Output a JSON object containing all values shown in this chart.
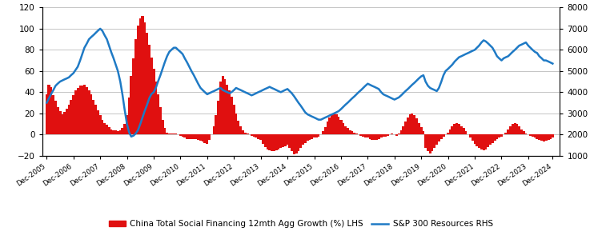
{
  "bar_color": "#e01010",
  "line_color": "#1f7ac5",
  "bar_label": "China Total Social Financing 12mth Agg Growth (%) LHS",
  "line_label": "S&P 300 Resources RHS",
  "left_ylim": [
    -20,
    120
  ],
  "right_ylim": [
    1000,
    8000
  ],
  "left_yticks": [
    -20,
    0,
    20,
    40,
    60,
    80,
    100,
    120
  ],
  "right_yticks": [
    1000,
    2000,
    3000,
    4000,
    5000,
    6000,
    7000,
    8000
  ],
  "bg_color": "#ffffff",
  "grid_color": "#bbbbbb",
  "tsf_data": {
    "x": [
      2005.92,
      2006.0,
      2006.08,
      2006.17,
      2006.25,
      2006.33,
      2006.42,
      2006.5,
      2006.58,
      2006.67,
      2006.75,
      2006.83,
      2006.92,
      2007.0,
      2007.08,
      2007.17,
      2007.25,
      2007.33,
      2007.42,
      2007.5,
      2007.58,
      2007.67,
      2007.75,
      2007.83,
      2007.92,
      2008.0,
      2008.08,
      2008.17,
      2008.25,
      2008.33,
      2008.42,
      2008.5,
      2008.58,
      2008.67,
      2008.75,
      2008.83,
      2008.92,
      2009.0,
      2009.08,
      2009.17,
      2009.25,
      2009.33,
      2009.42,
      2009.5,
      2009.58,
      2009.67,
      2009.75,
      2009.83,
      2009.92,
      2010.0,
      2010.08,
      2010.17,
      2010.25,
      2010.33,
      2010.42,
      2010.5,
      2010.58,
      2010.67,
      2010.75,
      2010.83,
      2010.92,
      2011.0,
      2011.08,
      2011.17,
      2011.25,
      2011.33,
      2011.42,
      2011.5,
      2011.58,
      2011.67,
      2011.75,
      2011.83,
      2011.92,
      2012.0,
      2012.08,
      2012.17,
      2012.25,
      2012.33,
      2012.42,
      2012.5,
      2012.58,
      2012.67,
      2012.75,
      2012.83,
      2012.92,
      2013.0,
      2013.08,
      2013.17,
      2013.25,
      2013.33,
      2013.42,
      2013.5,
      2013.58,
      2013.67,
      2013.75,
      2013.83,
      2013.92,
      2014.0,
      2014.08,
      2014.17,
      2014.25,
      2014.33,
      2014.42,
      2014.5,
      2014.58,
      2014.67,
      2014.75,
      2014.83,
      2014.92,
      2015.0,
      2015.08,
      2015.17,
      2015.25,
      2015.33,
      2015.42,
      2015.5,
      2015.58,
      2015.67,
      2015.75,
      2015.83,
      2015.92,
      2016.0,
      2016.08,
      2016.17,
      2016.25,
      2016.33,
      2016.42,
      2016.5,
      2016.58,
      2016.67,
      2016.75,
      2016.83,
      2016.92,
      2017.0,
      2017.08,
      2017.17,
      2017.25,
      2017.33,
      2017.42,
      2017.5,
      2017.58,
      2017.67,
      2017.75,
      2017.83,
      2017.92,
      2018.0,
      2018.08,
      2018.17,
      2018.25,
      2018.33,
      2018.42,
      2018.5,
      2018.58,
      2018.67,
      2018.75,
      2018.83,
      2018.92,
      2019.0,
      2019.08,
      2019.17,
      2019.25,
      2019.33,
      2019.42,
      2019.5,
      2019.58,
      2019.67,
      2019.75,
      2019.83,
      2019.92,
      2020.0,
      2020.08,
      2020.17,
      2020.25,
      2020.33,
      2020.42,
      2020.5,
      2020.58,
      2020.67,
      2020.75,
      2020.83,
      2020.92,
      2021.0,
      2021.08,
      2021.17,
      2021.25,
      2021.33,
      2021.42,
      2021.5,
      2021.58,
      2021.67,
      2021.75,
      2021.83,
      2021.92,
      2022.0,
      2022.08,
      2022.17,
      2022.25,
      2022.33,
      2022.42,
      2022.5,
      2022.58,
      2022.67,
      2022.75,
      2022.83,
      2022.92,
      2023.0,
      2023.08,
      2023.17,
      2023.25,
      2023.33,
      2023.42,
      2023.5,
      2023.58,
      2023.67,
      2023.75,
      2023.83,
      2023.92,
      2024.0,
      2024.08,
      2024.17,
      2024.25,
      2024.33,
      2024.42,
      2024.5,
      2024.58,
      2024.67,
      2024.75,
      2024.83
    ],
    "y": [
      38,
      47,
      45,
      37,
      32,
      26,
      22,
      19,
      21,
      24,
      28,
      33,
      37,
      42,
      44,
      46,
      46,
      47,
      45,
      42,
      38,
      33,
      28,
      23,
      18,
      14,
      11,
      9,
      7,
      5,
      4,
      4,
      3,
      4,
      6,
      10,
      18,
      35,
      55,
      72,
      90,
      103,
      110,
      112,
      106,
      96,
      85,
      73,
      62,
      50,
      38,
      26,
      14,
      6,
      2,
      1,
      1,
      1,
      1,
      0,
      -1,
      -2,
      -3,
      -4,
      -4,
      -4,
      -4,
      -4,
      -5,
      -6,
      -7,
      -8,
      -9,
      -5,
      0,
      8,
      18,
      32,
      50,
      55,
      52,
      47,
      42,
      36,
      28,
      20,
      13,
      8,
      4,
      2,
      1,
      0,
      -1,
      -2,
      -3,
      -4,
      -5,
      -9,
      -12,
      -14,
      -15,
      -16,
      -16,
      -15,
      -14,
      -13,
      -12,
      -11,
      -10,
      -13,
      -16,
      -19,
      -18,
      -16,
      -13,
      -10,
      -8,
      -6,
      -5,
      -4,
      -3,
      -3,
      -2,
      0,
      3,
      7,
      12,
      16,
      19,
      20,
      19,
      17,
      14,
      11,
      8,
      6,
      4,
      3,
      2,
      1,
      0,
      -1,
      -2,
      -3,
      -3,
      -4,
      -5,
      -5,
      -5,
      -4,
      -3,
      -2,
      -2,
      -1,
      0,
      1,
      0,
      -1,
      1,
      4,
      8,
      12,
      16,
      19,
      20,
      18,
      15,
      11,
      7,
      3,
      -13,
      -16,
      -18,
      -16,
      -13,
      -10,
      -7,
      -4,
      -2,
      0,
      2,
      5,
      8,
      10,
      11,
      10,
      8,
      6,
      3,
      0,
      -3,
      -6,
      -9,
      -11,
      -13,
      -14,
      -15,
      -14,
      -12,
      -10,
      -8,
      -6,
      -4,
      -3,
      -2,
      0,
      2,
      5,
      8,
      10,
      11,
      10,
      8,
      5,
      3,
      1,
      0,
      -1,
      -2,
      -3,
      -4,
      -5,
      -6,
      -7,
      -6,
      -5,
      -4,
      -3
    ]
  },
  "sp300_data": {
    "x": [
      2005.92,
      2006.0,
      2006.08,
      2006.17,
      2006.25,
      2006.33,
      2006.42,
      2006.5,
      2006.58,
      2006.67,
      2006.75,
      2006.83,
      2006.92,
      2007.0,
      2007.08,
      2007.17,
      2007.25,
      2007.33,
      2007.42,
      2007.5,
      2007.58,
      2007.67,
      2007.75,
      2007.83,
      2007.92,
      2008.0,
      2008.08,
      2008.17,
      2008.25,
      2008.33,
      2008.42,
      2008.5,
      2008.58,
      2008.67,
      2008.75,
      2008.83,
      2008.92,
      2009.0,
      2009.08,
      2009.17,
      2009.25,
      2009.33,
      2009.42,
      2009.5,
      2009.58,
      2009.67,
      2009.75,
      2009.83,
      2009.92,
      2010.0,
      2010.08,
      2010.17,
      2010.25,
      2010.33,
      2010.42,
      2010.5,
      2010.58,
      2010.67,
      2010.75,
      2010.83,
      2010.92,
      2011.0,
      2011.08,
      2011.17,
      2011.25,
      2011.33,
      2011.42,
      2011.5,
      2011.58,
      2011.67,
      2011.75,
      2011.83,
      2011.92,
      2012.0,
      2012.08,
      2012.17,
      2012.25,
      2012.33,
      2012.42,
      2012.5,
      2012.58,
      2012.67,
      2012.75,
      2012.83,
      2012.92,
      2013.0,
      2013.08,
      2013.17,
      2013.25,
      2013.33,
      2013.42,
      2013.5,
      2013.58,
      2013.67,
      2013.75,
      2013.83,
      2013.92,
      2014.0,
      2014.08,
      2014.17,
      2014.25,
      2014.33,
      2014.42,
      2014.5,
      2014.58,
      2014.67,
      2014.75,
      2014.83,
      2014.92,
      2015.0,
      2015.08,
      2015.17,
      2015.25,
      2015.33,
      2015.42,
      2015.5,
      2015.58,
      2015.67,
      2015.75,
      2015.83,
      2015.92,
      2016.0,
      2016.08,
      2016.17,
      2016.25,
      2016.33,
      2016.42,
      2016.5,
      2016.58,
      2016.67,
      2016.75,
      2016.83,
      2016.92,
      2017.0,
      2017.08,
      2017.17,
      2017.25,
      2017.33,
      2017.42,
      2017.5,
      2017.58,
      2017.67,
      2017.75,
      2017.83,
      2017.92,
      2018.0,
      2018.08,
      2018.17,
      2018.25,
      2018.33,
      2018.42,
      2018.5,
      2018.58,
      2018.67,
      2018.75,
      2018.83,
      2018.92,
      2019.0,
      2019.08,
      2019.17,
      2019.25,
      2019.33,
      2019.42,
      2019.5,
      2019.58,
      2019.67,
      2019.75,
      2019.83,
      2019.92,
      2020.0,
      2020.08,
      2020.17,
      2020.25,
      2020.33,
      2020.42,
      2020.5,
      2020.58,
      2020.67,
      2020.75,
      2020.83,
      2020.92,
      2021.0,
      2021.08,
      2021.17,
      2021.25,
      2021.33,
      2021.42,
      2021.5,
      2021.58,
      2021.67,
      2021.75,
      2021.83,
      2021.92,
      2022.0,
      2022.08,
      2022.17,
      2022.25,
      2022.33,
      2022.42,
      2022.5,
      2022.58,
      2022.67,
      2022.75,
      2022.83,
      2022.92,
      2023.0,
      2023.08,
      2023.17,
      2023.25,
      2023.33,
      2023.42,
      2023.5,
      2023.58,
      2023.67,
      2023.75,
      2023.83,
      2023.92,
      2024.0,
      2024.08,
      2024.17,
      2024.25,
      2024.33,
      2024.42,
      2024.5,
      2024.58,
      2024.67,
      2024.75,
      2024.83
    ],
    "y": [
      3500,
      3700,
      3900,
      4100,
      4300,
      4400,
      4500,
      4550,
      4600,
      4650,
      4700,
      4800,
      4900,
      5050,
      5200,
      5500,
      5800,
      6100,
      6300,
      6500,
      6600,
      6700,
      6800,
      6900,
      7000,
      6900,
      6700,
      6500,
      6200,
      5900,
      5600,
      5300,
      5000,
      4500,
      3900,
      3200,
      2500,
      2100,
      1900,
      1950,
      2050,
      2200,
      2500,
      2800,
      3100,
      3400,
      3700,
      3900,
      4000,
      4200,
      4500,
      4800,
      5100,
      5400,
      5700,
      5900,
      6000,
      6100,
      6100,
      6000,
      5900,
      5800,
      5600,
      5400,
      5200,
      5000,
      4800,
      4600,
      4400,
      4200,
      4100,
      4000,
      3900,
      3950,
      4000,
      4050,
      4100,
      4150,
      4200,
      4100,
      4050,
      4000,
      3950,
      4000,
      4100,
      4200,
      4150,
      4100,
      4050,
      4000,
      3950,
      3900,
      3850,
      3900,
      3950,
      4000,
      4050,
      4100,
      4150,
      4200,
      4250,
      4200,
      4150,
      4100,
      4050,
      4000,
      4050,
      4100,
      4150,
      4050,
      3950,
      3800,
      3650,
      3500,
      3350,
      3200,
      3050,
      2950,
      2900,
      2850,
      2800,
      2750,
      2700,
      2700,
      2750,
      2800,
      2850,
      2900,
      2950,
      3000,
      3050,
      3100,
      3200,
      3300,
      3400,
      3500,
      3600,
      3700,
      3800,
      3900,
      4000,
      4100,
      4200,
      4300,
      4400,
      4350,
      4300,
      4250,
      4200,
      4150,
      4000,
      3900,
      3850,
      3800,
      3750,
      3700,
      3650,
      3700,
      3750,
      3850,
      3950,
      4050,
      4150,
      4250,
      4350,
      4450,
      4550,
      4650,
      4750,
      4800,
      4500,
      4300,
      4200,
      4150,
      4100,
      4050,
      4200,
      4500,
      4800,
      5000,
      5100,
      5200,
      5300,
      5450,
      5550,
      5650,
      5700,
      5750,
      5800,
      5850,
      5900,
      5950,
      6000,
      6100,
      6200,
      6350,
      6450,
      6400,
      6300,
      6200,
      6100,
      5900,
      5700,
      5600,
      5500,
      5600,
      5650,
      5700,
      5800,
      5900,
      6000,
      6100,
      6200,
      6250,
      6300,
      6350,
      6200,
      6100,
      6000,
      5900,
      5850,
      5700,
      5600,
      5500,
      5500,
      5450,
      5400,
      5350
    ]
  },
  "xtick_labels": [
    "Dec-2005",
    "Dec-2006",
    "Dec-2007",
    "Dec-2008",
    "Dec-2009",
    "Dec-2010",
    "Dec-2011",
    "Dec-2012",
    "Dec-2013",
    "Dec-2014",
    "Dec-2015",
    "Dec-2016",
    "Dec-2017",
    "Dec-2018",
    "Dec-2019",
    "Dec-2020",
    "Dec-2021",
    "Dec-2022",
    "Dec-2023",
    "Dec-2024"
  ],
  "xtick_positions": [
    2005.92,
    2006.92,
    2007.92,
    2008.92,
    2009.92,
    2010.92,
    2011.92,
    2012.92,
    2013.92,
    2014.92,
    2015.92,
    2016.92,
    2017.92,
    2018.92,
    2019.92,
    2020.92,
    2021.92,
    2022.92,
    2023.92,
    2024.83
  ]
}
